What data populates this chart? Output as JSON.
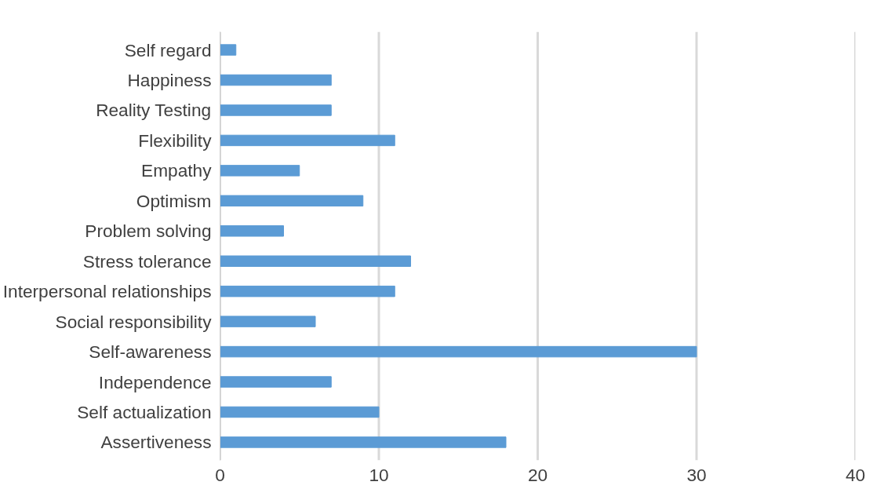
{
  "chart_data": {
    "type": "bar",
    "orientation": "horizontal",
    "categories": [
      "Self regard",
      "Happiness",
      "Reality Testing",
      "Flexibility",
      "Empathy",
      "Optimism",
      "Problem solving",
      "Stress tolerance",
      "Interpersonal relationships",
      "Social responsibility",
      "Self-awareness",
      "Independence",
      "Self actualization",
      "Assertiveness"
    ],
    "values": [
      1,
      7,
      7,
      11,
      5,
      9,
      4,
      12,
      11,
      6,
      30,
      7,
      10,
      18
    ],
    "color": "#5b9bd5",
    "xlim": [
      0,
      40
    ],
    "xticks": [
      0,
      10,
      20,
      30,
      40
    ],
    "grid": "x"
  }
}
